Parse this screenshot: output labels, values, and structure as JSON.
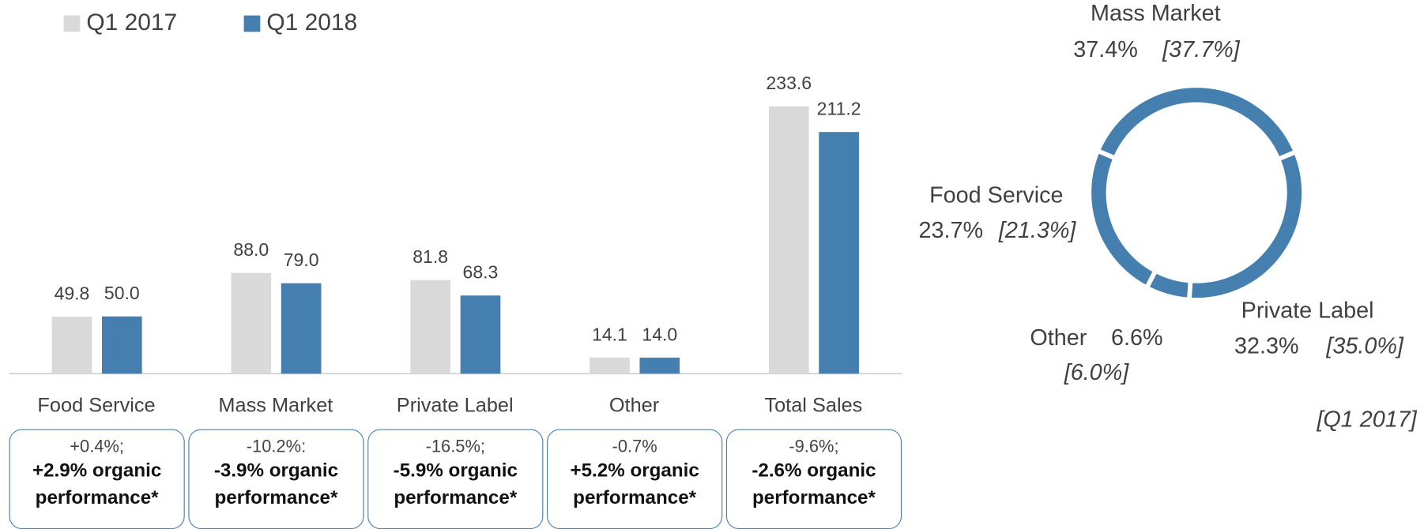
{
  "chart_data": [
    {
      "type": "bar",
      "categories": [
        "Food Service",
        "Mass Market",
        "Private Label",
        "Other",
        "Total Sales"
      ],
      "series": [
        {
          "name": "Q1 2017",
          "color": "#d9d9d9",
          "values": [
            49.8,
            88.0,
            81.8,
            14.1,
            233.6
          ],
          "value_labels": [
            "49.8",
            "88.0",
            "81.8",
            "14.1",
            "233.6"
          ]
        },
        {
          "name": "Q1 2018",
          "color": "#457fb0",
          "values": [
            50.0,
            79.0,
            68.3,
            14.0,
            211.2
          ],
          "value_labels": [
            "50.0",
            "79.0",
            "68.3",
            "14.0",
            "211.2"
          ]
        }
      ],
      "annotations": [
        {
          "change": "+0.4%;",
          "organic": "+2.9% organic performance*"
        },
        {
          "change": "-10.2%:",
          "organic": "-3.9% organic performance*"
        },
        {
          "change": "-16.5%;",
          "organic": "-5.9% organic performance*"
        },
        {
          "change": "-0.7%",
          "organic": "+5.2% organic performance*"
        },
        {
          "change": "-9.6%;",
          "organic": "-2.6% organic performance*"
        }
      ]
    },
    {
      "type": "donut",
      "categories": [
        "Mass Market",
        "Private Label",
        "Other",
        "Food Service"
      ],
      "values": [
        37.4,
        32.3,
        6.6,
        23.7
      ],
      "value_labels": [
        "37.4%",
        "32.3%",
        "6.6%",
        "23.7%"
      ],
      "prior_values": [
        37.7,
        35.0,
        6.0,
        21.3
      ],
      "prior_labels": [
        "[37.7%]",
        "[35.0%]",
        "[6.0%]",
        "[21.3%]"
      ],
      "prior_note": "[Q1 2017]",
      "color": "#457fb0"
    }
  ]
}
